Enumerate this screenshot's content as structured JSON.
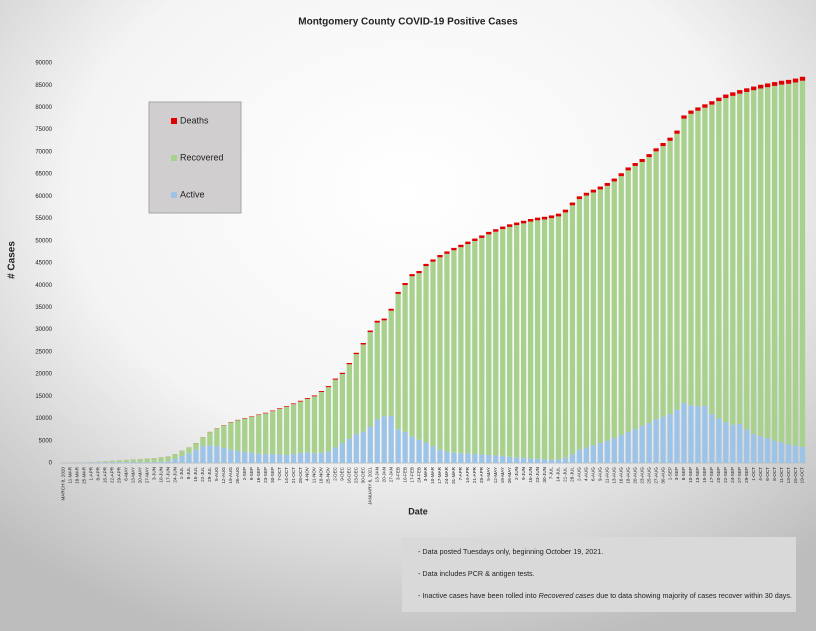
{
  "chart_data": {
    "type": "stacked_bar",
    "title": "Montgomery County COVID-19 Positive Cases",
    "x_label": "Date",
    "y_label": "# Cases",
    "categories": [
      "MARCH 8, 2020",
      "11-MAR",
      "18-MAR",
      "25-MAR",
      "1-APR",
      "8-APR",
      "15-APR",
      "22-APR",
      "29-APR",
      "6-MAY",
      "13-MAY",
      "20-MAY",
      "27-MAY",
      "3-JUN",
      "10-JUN",
      "17-JUN",
      "24-JUN",
      "1-JUL",
      "8-JUL",
      "15-JUL",
      "22-JUL",
      "29-JUL",
      "5-AUG",
      "12-AUG",
      "19-AUG",
      "26-AUG",
      "2-SEP",
      "9-SEP",
      "16-SEP",
      "23-SEP",
      "30-SEP",
      "7-OCT",
      "14-OCT",
      "21-OCT",
      "28-OCT",
      "4-NOV",
      "11-NOV",
      "18-NOV",
      "25-NOV",
      "2-DEC",
      "9-DEC",
      "16-DEC",
      "23-DEC",
      "30-DEC",
      "JANUARY 6, 2021",
      "13-JAN",
      "20-JAN",
      "27-JAN",
      "3-FEB",
      "10-FEB",
      "17-FEB",
      "24-FEB",
      "3-MAR",
      "10-MAR",
      "17-MAR",
      "24-MAR",
      "31-MAR",
      "7-APR",
      "14-APR",
      "21-APR",
      "28-APR",
      "5-MAY",
      "12-MAY",
      "19-MAY",
      "26-MAY",
      "2-JUN",
      "9-JUN",
      "16-JUN",
      "23-JUN",
      "30-JUN",
      "7-JUL",
      "14-JUL",
      "21-JUL",
      "28-JUL",
      "2-AUG",
      "4-AUG",
      "6-AUG",
      "9-AUG",
      "11-AUG",
      "13-AUG",
      "16-AUG",
      "18-AUG",
      "20-AUG",
      "23-AUG",
      "25-AUG",
      "27-AUG",
      "30-AUG",
      "1-SEP",
      "3-SEP",
      "8-SEP",
      "10-SEP",
      "13-SEP",
      "15-SEP",
      "17-SEP",
      "20-SEP",
      "22-SEP",
      "24-SEP",
      "27-SEP",
      "29-SEP",
      "1-OCT",
      "4-OCT",
      "6-OCT",
      "8-OCT",
      "11-OCT",
      "13-OCT",
      "15-OCT",
      "19-OCT"
    ],
    "series": [
      {
        "name": "Active",
        "color": "#9dc3e6",
        "values": [
          0,
          10,
          40,
          80,
          150,
          200,
          200,
          200,
          200,
          200,
          200,
          200,
          200,
          200,
          300,
          400,
          900,
          1600,
          2200,
          3000,
          3800,
          4000,
          3800,
          3400,
          3000,
          2700,
          2500,
          2300,
          2100,
          2000,
          2000,
          2000,
          1800,
          2000,
          2300,
          2400,
          2200,
          2300,
          2600,
          3500,
          4500,
          5500,
          6500,
          7000,
          8200,
          9800,
          10500,
          10600,
          7600,
          7000,
          6000,
          5200,
          4600,
          3800,
          3000,
          2600,
          2300,
          2200,
          2200,
          2000,
          1900,
          1800,
          1700,
          1600,
          1400,
          1300,
          1100,
          1000,
          900,
          800,
          700,
          800,
          1200,
          2000,
          3000,
          3500,
          4000,
          4500,
          5000,
          5600,
          6300,
          7000,
          7600,
          8400,
          9000,
          9800,
          10400,
          11000,
          12000,
          13500,
          13000,
          12800,
          12900,
          11000,
          10000,
          9200,
          8600,
          8800,
          7500,
          6500,
          6000,
          5600,
          5000,
          4600,
          4200,
          3900,
          3600
        ]
      },
      {
        "name": "Recovered",
        "color": "#a9d18e",
        "values": [
          0,
          0,
          10,
          20,
          48,
          97,
          196,
          295,
          394,
          493,
          592,
          691,
          790,
          889,
          988,
          1087,
          1085,
          1182,
          1278,
          1472,
          1965,
          2955,
          3945,
          5035,
          6125,
          6915,
          7505,
          8095,
          8685,
          9175,
          9665,
          10155,
          10845,
          11235,
          11525,
          12015,
          12800,
          13685,
          14470,
          15250,
          15530,
          16710,
          17990,
          19670,
          21240,
          21810,
          21590,
          23670,
          30450,
          33030,
          36020,
          37510,
          39700,
          41490,
          43280,
          44470,
          45565,
          46360,
          47055,
          47950,
          48745,
          49640,
          50335,
          51030,
          51725,
          52220,
          52815,
          53310,
          53705,
          54000,
          54395,
          54690,
          55185,
          55980,
          56375,
          56670,
          56865,
          57060,
          57355,
          57750,
          58245,
          58840,
          59235,
          59330,
          59825,
          60315,
          60905,
          61495,
          62085,
          63975,
          65565,
          66455,
          67045,
          69635,
          71425,
          72915,
          74005,
          74295,
          75985,
          77375,
          78265,
          78955,
          79845,
          80535,
          81125,
          81715,
          82405
        ]
      },
      {
        "name": "Deaths",
        "color": "#e00000",
        "values": [
          0,
          0,
          0,
          0,
          2,
          3,
          4,
          5,
          6,
          7,
          8,
          9,
          10,
          11,
          12,
          13,
          15,
          18,
          22,
          28,
          35,
          45,
          55,
          65,
          75,
          85,
          95,
          105,
          115,
          125,
          135,
          145,
          155,
          165,
          175,
          185,
          200,
          215,
          230,
          250,
          270,
          290,
          310,
          330,
          360,
          390,
          410,
          430,
          450,
          470,
          480,
          490,
          500,
          510,
          520,
          530,
          535,
          540,
          545,
          550,
          555,
          560,
          565,
          570,
          575,
          580,
          585,
          590,
          595,
          600,
          605,
          610,
          615,
          620,
          625,
          630,
          635,
          640,
          645,
          650,
          655,
          660,
          665,
          670,
          675,
          685,
          695,
          705,
          715,
          725,
          735,
          745,
          755,
          765,
          775,
          785,
          795,
          805,
          815,
          825,
          835,
          845,
          855,
          865,
          875,
          885,
          895
        ]
      }
    ],
    "ylim": [
      0,
      90000
    ],
    "yticks": [
      0,
      5000,
      10000,
      15000,
      20000,
      25000,
      30000,
      35000,
      40000,
      45000,
      50000,
      55000,
      60000,
      65000,
      70000,
      75000,
      80000,
      85000,
      90000
    ],
    "grid": false,
    "legend": "upper left",
    "notes": [
      [
        "- Data posted Tuesdays only, beginning October 19, 2021."
      ],
      [
        "- Data includes PCR & antigen tests."
      ],
      [
        "- Inactive cases have been rolled into ",
        "Recovered cases",
        " due to data showing majority of cases recover within 30 days."
      ]
    ]
  }
}
